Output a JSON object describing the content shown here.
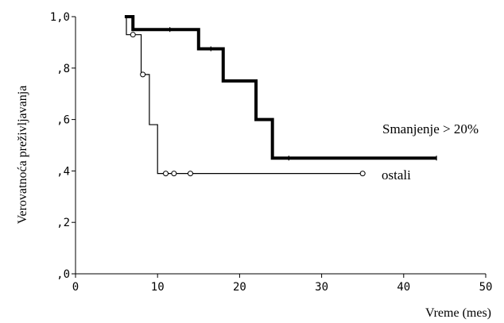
{
  "chart_data": {
    "type": "line",
    "subtype": "kaplan-meier step",
    "xlabel": "Vreme (mes)",
    "ylabel": "Verovatnoća preživljavanja",
    "xlim": [
      0,
      50
    ],
    "ylim": [
      0,
      1
    ],
    "xticks": [
      "0",
      "10",
      "20",
      "30",
      "40",
      "50"
    ],
    "yticks": [
      ",0",
      ",2",
      ",4",
      ",6",
      ",8",
      "1,0"
    ],
    "grid": false,
    "series": [
      {
        "name": "Smanjenje > 20%",
        "style": "thick",
        "color": "#000000",
        "steps": [
          [
            6,
            1.0
          ],
          [
            7,
            0.95
          ],
          [
            15,
            0.875
          ],
          [
            18,
            0.75
          ],
          [
            22,
            0.6
          ],
          [
            24,
            0.45
          ],
          [
            44,
            0.45
          ]
        ],
        "censored": [
          [
            11.5,
            0.95
          ],
          [
            16.5,
            0.875
          ],
          [
            26,
            0.45
          ],
          [
            44,
            0.45
          ]
        ]
      },
      {
        "name": "ostali",
        "style": "thin",
        "color": "#000000",
        "steps": [
          [
            6,
            1.0
          ],
          [
            6.2,
            0.93
          ],
          [
            8,
            0.775
          ],
          [
            9,
            0.58
          ],
          [
            10,
            0.39
          ],
          [
            35,
            0.39
          ]
        ],
        "censored": [
          [
            7,
            0.93
          ],
          [
            8.2,
            0.775
          ],
          [
            11,
            0.39
          ],
          [
            12,
            0.39
          ],
          [
            14,
            0.39
          ],
          [
            35,
            0.39
          ]
        ]
      }
    ]
  }
}
